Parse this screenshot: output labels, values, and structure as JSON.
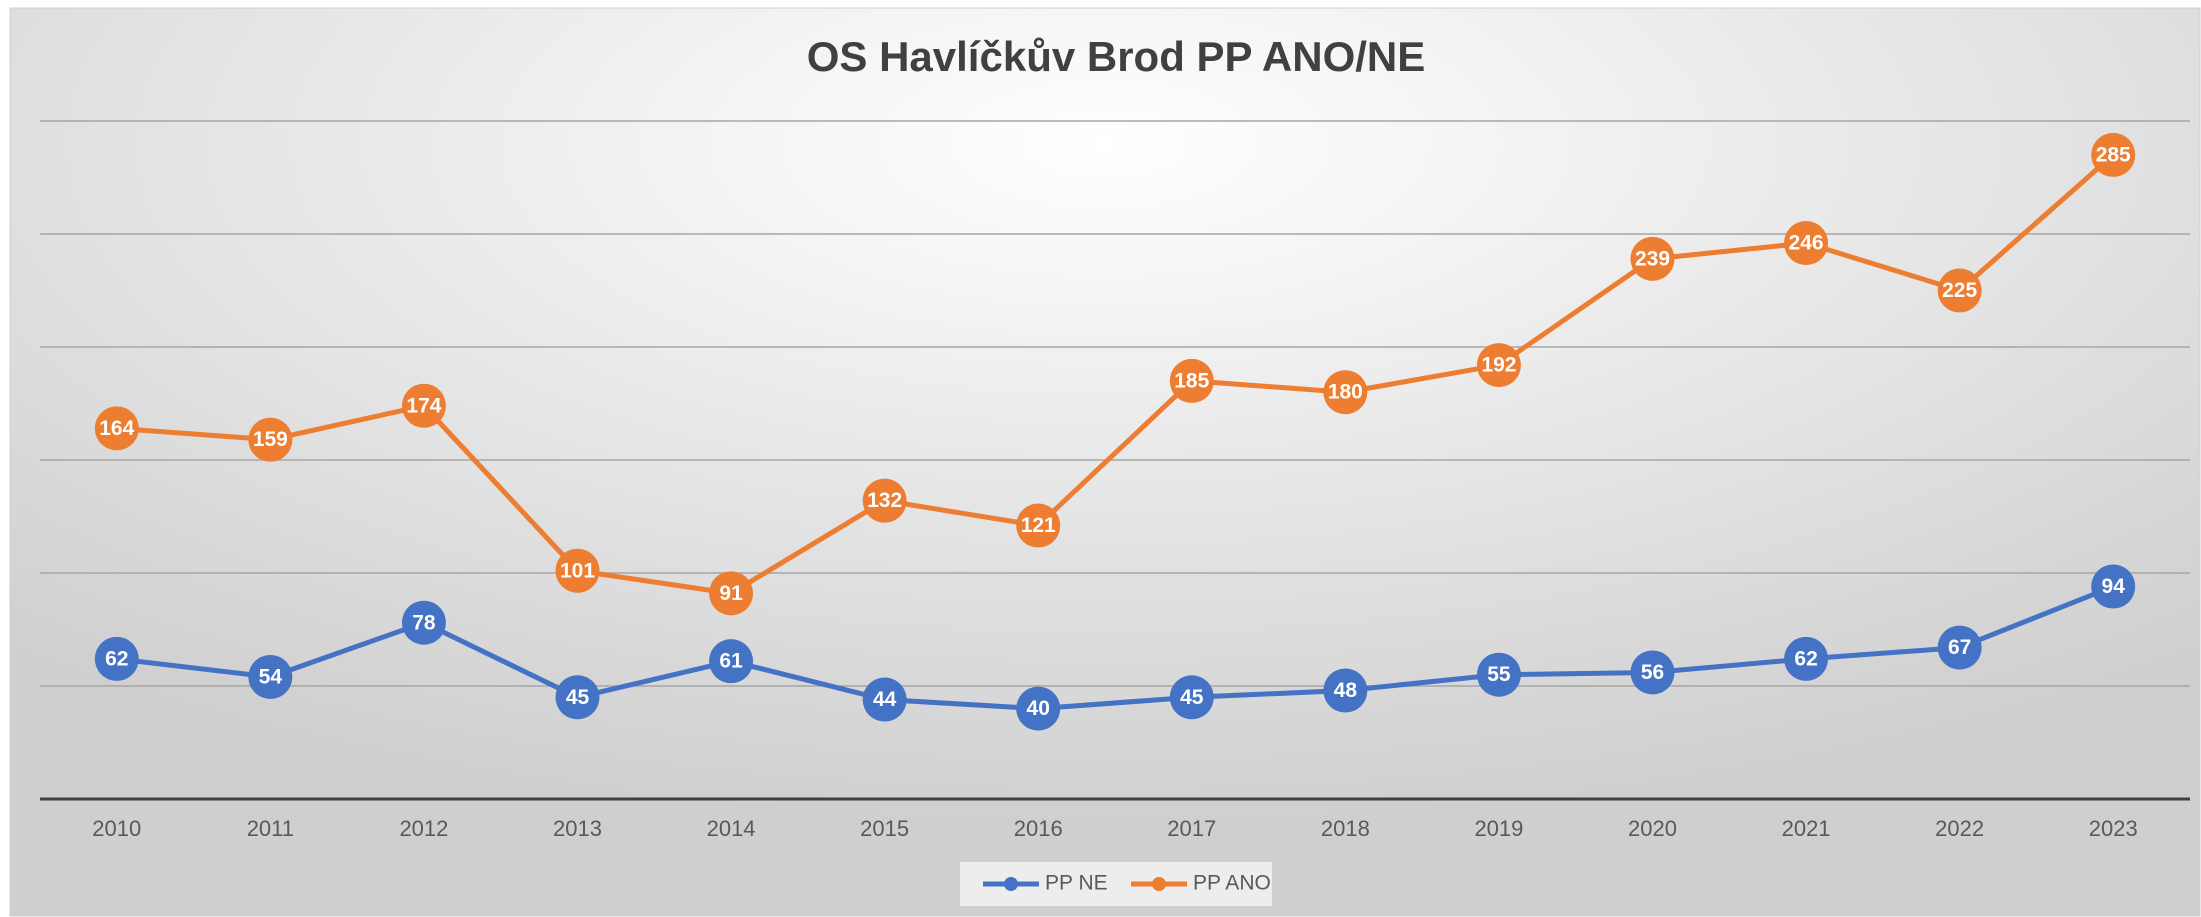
{
  "chart_data": {
    "type": "line",
    "title": "OS Havlíčkův Brod PP ANO/NE",
    "categories": [
      "2010",
      "2011",
      "2012",
      "2013",
      "2014",
      "2015",
      "2016",
      "2017",
      "2018",
      "2019",
      "2020",
      "2021",
      "2022",
      "2023"
    ],
    "series": [
      {
        "name": "PP NE",
        "color": "#4472c4",
        "values": [
          62,
          54,
          78,
          45,
          61,
          44,
          40,
          45,
          48,
          55,
          56,
          62,
          67,
          94
        ]
      },
      {
        "name": "PP ANO",
        "color": "#ed7d31",
        "values": [
          164,
          159,
          174,
          101,
          91,
          132,
          121,
          185,
          180,
          192,
          239,
          246,
          225,
          285
        ]
      }
    ],
    "ylim": [
      0,
      300
    ],
    "yticks": [
      0,
      50,
      100,
      150,
      200,
      250,
      300
    ],
    "grid": true,
    "legend": "bottom"
  }
}
